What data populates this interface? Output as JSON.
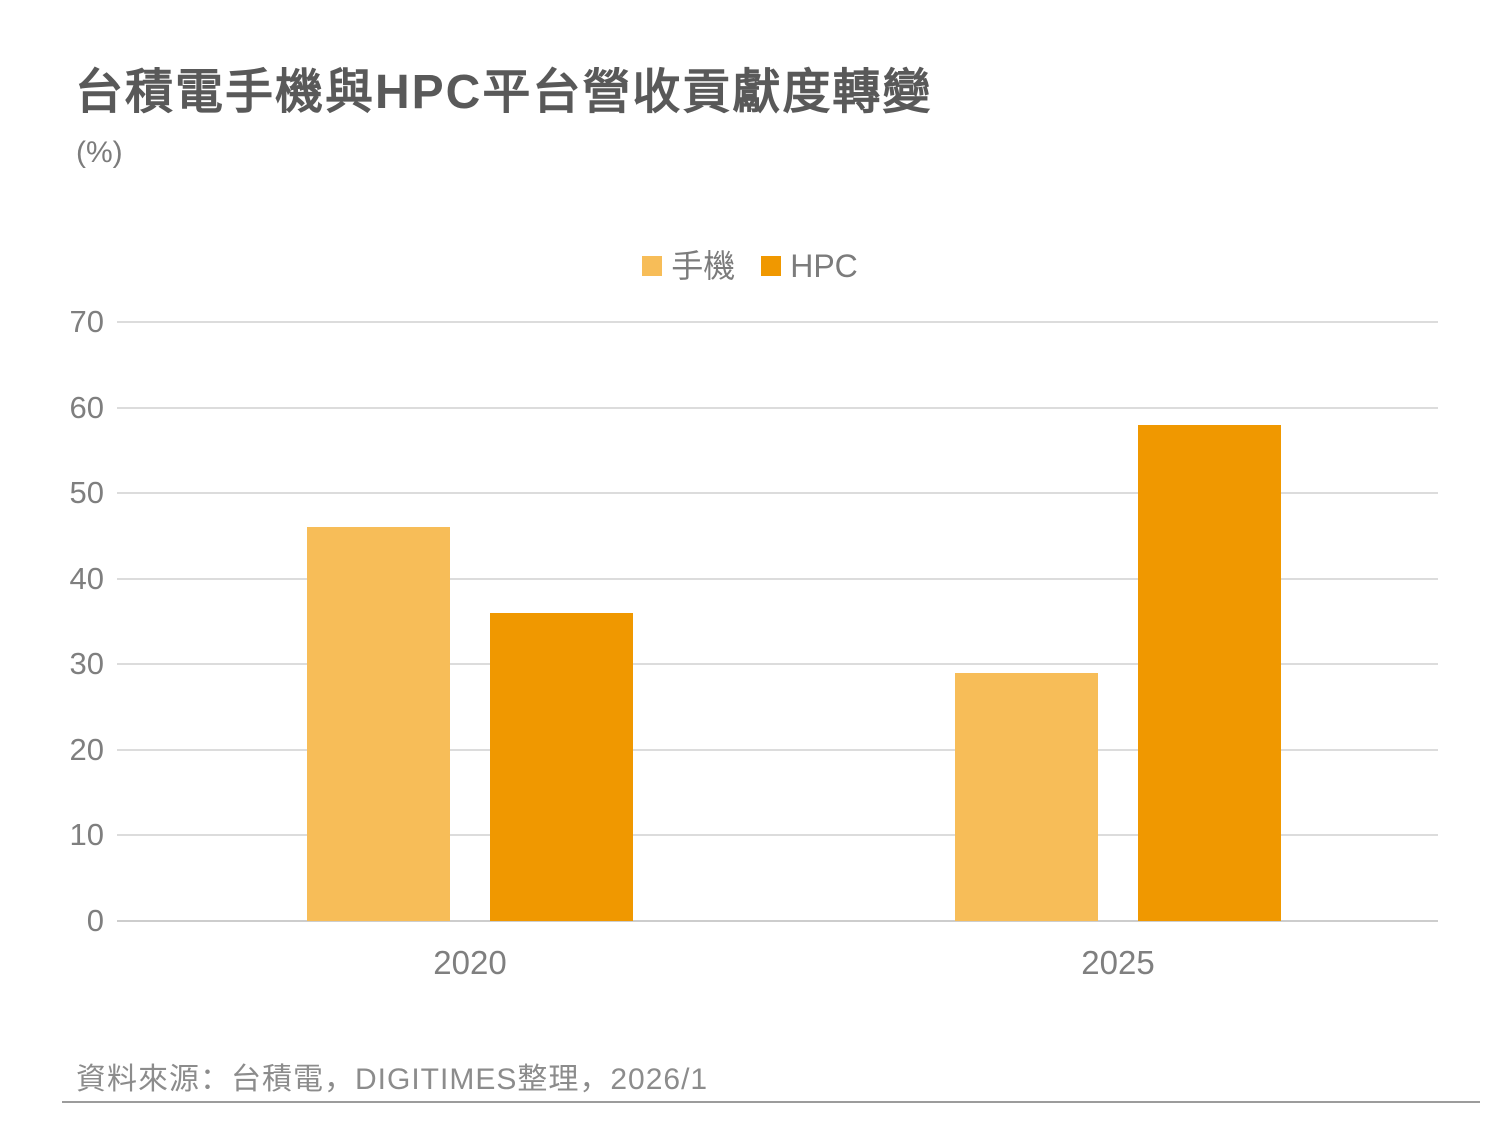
{
  "chart": {
    "title": "台積電手機與HPC平台營收貢獻度轉變",
    "unit_label": "(%)",
    "source": "資料來源：台積電，DIGITIMES整理，2026/1"
  },
  "chart_data": {
    "type": "bar",
    "title": "台積電手機與HPC平台營收貢獻度轉變",
    "categories": [
      "2020",
      "2025"
    ],
    "series": [
      {
        "name": "手機",
        "color": "#F7BD58",
        "values": [
          46,
          29
        ]
      },
      {
        "name": "HPC",
        "color": "#F09800",
        "values": [
          36,
          58
        ]
      }
    ],
    "xlabel": "",
    "ylabel": "(%)",
    "ylim": [
      0,
      70
    ],
    "yticks": [
      0,
      10,
      20,
      30,
      40,
      50,
      60,
      70
    ],
    "grid": true,
    "legend_position": "top-center"
  },
  "colors": {
    "series_mobile": "#F7BD58",
    "series_hpc": "#F09800",
    "title_text": "#595959",
    "axis_text": "#7F7F7F",
    "gridline": "#DCDCDC"
  }
}
